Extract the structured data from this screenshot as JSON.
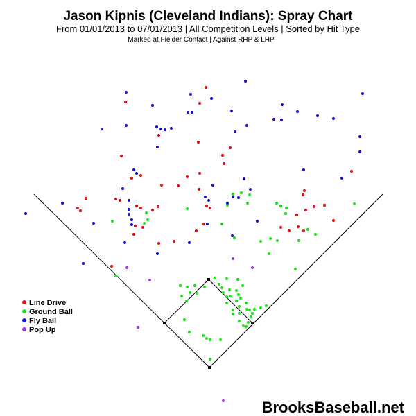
{
  "header": {
    "title": "Jason Kipnis (Cleveland Indians): Spray Chart",
    "subtitle": "From 01/01/2013 to 07/01/2013 | All Competition Levels | Sorted by Hit Type",
    "note": "Marked at Fielder Contact |   Against RHP & LHP"
  },
  "footer": {
    "brand": "BrooksBaseball.net"
  },
  "colors": {
    "Line Drive": "#e0131a",
    "Ground Ball": "#1ee61e",
    "Fly Ball": "#1818d6",
    "Pop Up": "#9b3be0"
  },
  "chart_data": {
    "type": "scatter",
    "title": "Jason Kipnis (Cleveland Indians): Spray Chart",
    "subtitle": "From 01/01/2013 to 07/01/2013 | All Competition Levels | Sorted by Hit Type",
    "xlabel": "",
    "ylabel": "",
    "grid": false,
    "legend_position": "left-middle",
    "series": [
      {
        "name": "Line Drive",
        "color": "#e0131a",
        "points": [
          [
            297,
            126
          ],
          [
            181,
            147
          ],
          [
            288,
            149
          ],
          [
            229,
            195
          ],
          [
            286,
            205
          ],
          [
            332,
            213
          ],
          [
            321,
            224
          ],
          [
            175,
            225
          ],
          [
            323,
            236
          ],
          [
            203,
            253
          ],
          [
            190,
            257
          ],
          [
            270,
            255
          ],
          [
            288,
            250
          ],
          [
            507,
            247
          ],
          [
            233,
            267
          ],
          [
            257,
            268
          ],
          [
            287,
            273
          ],
          [
            439,
            275
          ],
          [
            437,
            281
          ],
          [
            124,
            286
          ],
          [
            167,
            287
          ],
          [
            173,
            289
          ],
          [
            112,
            300
          ],
          [
            116,
            304
          ],
          [
            197,
            297
          ],
          [
            203,
            300
          ],
          [
            220,
            303
          ],
          [
            228,
            298
          ],
          [
            298,
            297
          ],
          [
            303,
            300
          ],
          [
            468,
            296
          ],
          [
            453,
            298
          ],
          [
            441,
            303
          ],
          [
            428,
            310
          ],
          [
            481,
            318
          ],
          [
            405,
            328
          ],
          [
            430,
            327
          ],
          [
            417,
            333
          ],
          [
            438,
            333
          ],
          [
            195,
            326
          ],
          [
            193,
            338
          ],
          [
            206,
            328
          ],
          [
            229,
            351
          ],
          [
            251,
            348
          ],
          [
            283,
            333
          ],
          [
            294,
            323
          ],
          [
            161,
            384
          ]
        ]
      },
      {
        "name": "Ground Ball",
        "color": "#1ee61e",
        "points": [
          [
            336,
            280
          ],
          [
            348,
            278
          ],
          [
            360,
            281
          ],
          [
            357,
            293
          ],
          [
            399,
            293
          ],
          [
            405,
            297
          ],
          [
            413,
            300
          ],
          [
            412,
            308
          ],
          [
            511,
            294
          ],
          [
            270,
            301
          ],
          [
            328,
            296
          ],
          [
            211,
            307
          ],
          [
            208,
            322
          ],
          [
            213,
            317
          ],
          [
            162,
            319
          ],
          [
            320,
            323
          ],
          [
            444,
            331
          ],
          [
            455,
            338
          ],
          [
            376,
            348
          ],
          [
            390,
            344
          ],
          [
            400,
            347
          ],
          [
            431,
            347
          ],
          [
            388,
            366
          ],
          [
            338,
            343
          ],
          [
            426,
            388
          ],
          [
            167,
            398
          ],
          [
            310,
            401
          ],
          [
            327,
            402
          ],
          [
            343,
            403
          ],
          [
            260,
            412
          ],
          [
            270,
            414
          ],
          [
            274,
            422
          ],
          [
            262,
            427
          ],
          [
            269,
            434
          ],
          [
            284,
            423
          ],
          [
            295,
            414
          ],
          [
            281,
            412
          ],
          [
            316,
            410
          ],
          [
            320,
            415
          ],
          [
            322,
            422
          ],
          [
            331,
            418
          ],
          [
            333,
            427
          ],
          [
            341,
            419
          ],
          [
            344,
            425
          ],
          [
            341,
            434
          ],
          [
            347,
            430
          ],
          [
            350,
            412
          ],
          [
            355,
            437
          ],
          [
            356,
            446
          ],
          [
            345,
            442
          ],
          [
            336,
            447
          ],
          [
            327,
            437
          ],
          [
            327,
            428
          ],
          [
            336,
            453
          ],
          [
            345,
            452
          ],
          [
            360,
            447
          ],
          [
            364,
            452
          ],
          [
            367,
            446
          ],
          [
            376,
            444
          ],
          [
            384,
            441
          ],
          [
            345,
            463
          ],
          [
            355,
            471
          ],
          [
            266,
            461
          ],
          [
            273,
            479
          ],
          [
            293,
            484
          ],
          [
            298,
            488
          ],
          [
            303,
            490
          ],
          [
            318,
            490
          ],
          [
            303,
            518
          ],
          [
            358,
            465
          ],
          [
            362,
            457
          ],
          [
            351,
            470
          ]
        ]
      },
      {
        "name": "Fly Ball",
        "color": "#1818d6",
        "points": [
          [
            182,
            133
          ],
          [
            275,
            136
          ],
          [
            354,
            117
          ],
          [
            523,
            135
          ],
          [
            220,
            152
          ],
          [
            305,
            142
          ],
          [
            407,
            151
          ],
          [
            271,
            162
          ],
          [
            277,
            162
          ],
          [
            334,
            160
          ],
          [
            429,
            161
          ],
          [
            458,
            167
          ],
          [
            481,
            171
          ],
          [
            395,
            172
          ],
          [
            406,
            173
          ],
          [
            147,
            186
          ],
          [
            182,
            181
          ],
          [
            226,
            183
          ],
          [
            232,
            186
          ],
          [
            238,
            187
          ],
          [
            247,
            185
          ],
          [
            339,
            190
          ],
          [
            356,
            181
          ],
          [
            519,
            197
          ],
          [
            519,
            219
          ],
          [
            227,
            212
          ],
          [
            193,
            245
          ],
          [
            197,
            250
          ],
          [
            438,
            245
          ],
          [
            493,
            257
          ],
          [
            352,
            258
          ],
          [
            307,
            267
          ],
          [
            361,
            273
          ],
          [
            177,
            272
          ],
          [
            90,
            293
          ],
          [
            135,
            322
          ],
          [
            186,
            289
          ],
          [
            186,
            302
          ],
          [
            186,
            309
          ],
          [
            190,
            317
          ],
          [
            190,
            324
          ],
          [
            296,
            284
          ],
          [
            336,
            284
          ],
          [
            344,
            285
          ],
          [
            328,
            293
          ],
          [
            301,
            289
          ],
          [
            299,
            323
          ],
          [
            371,
            319
          ],
          [
            37,
            308
          ],
          [
            180,
            350
          ],
          [
            273,
            350
          ],
          [
            335,
            340
          ],
          [
            227,
            366
          ],
          [
            120,
            380
          ]
        ]
      },
      {
        "name": "Pop Up",
        "color": "#9b3be0",
        "points": [
          [
            336,
            373
          ],
          [
            364,
            386
          ],
          [
            183,
            386
          ],
          [
            216,
            404
          ],
          [
            199,
            472
          ],
          [
            322,
            578
          ]
        ]
      }
    ],
    "field": {
      "home_plate": [
        302,
        530
      ],
      "first_base": [
        364,
        466
      ],
      "second_base": [
        301,
        403
      ],
      "third_base": [
        237,
        466
      ],
      "left_foul_line_end": [
        49,
        280
      ],
      "right_foul_line_end": [
        552,
        280
      ]
    }
  }
}
